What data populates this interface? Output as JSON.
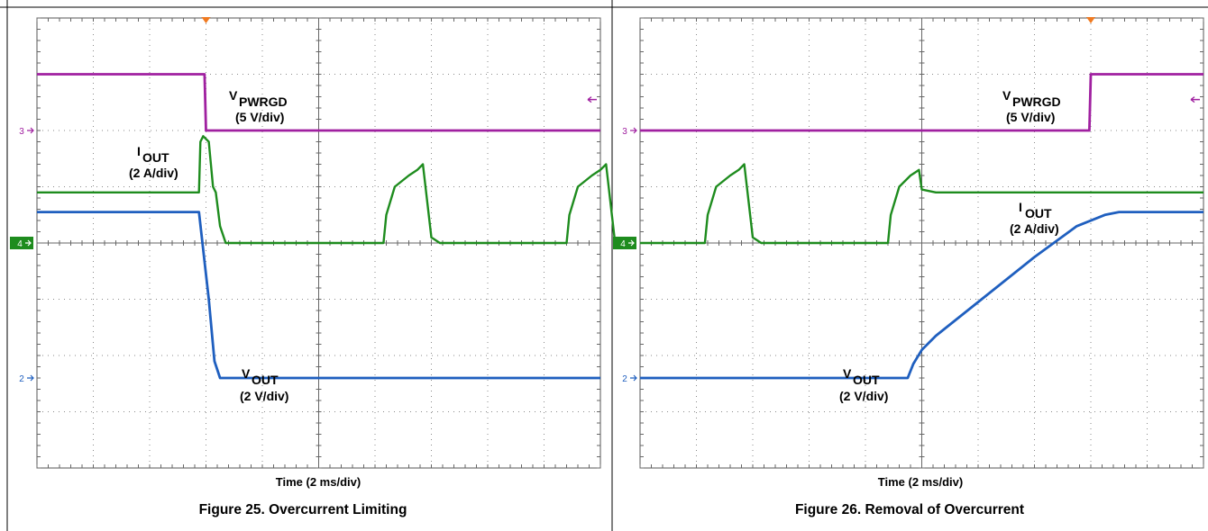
{
  "chart_data": [
    {
      "type": "line",
      "title": "Figure 25. Overcurrent Limiting",
      "xlabel": "Time (2 ms/div)",
      "x_unit": "ms",
      "xlim": [
        0,
        20
      ],
      "ylim": [
        0,
        8
      ],
      "grid": true,
      "channel_markers": [
        {
          "name": "3",
          "y": 6,
          "color": "#a020a0"
        },
        {
          "name": "4",
          "y": 4,
          "color": "#1e8c1e"
        },
        {
          "name": "2",
          "y": 1.6,
          "color": "#1f5fbf"
        }
      ],
      "series": [
        {
          "name": "V",
          "subscript": "PWRGD",
          "scale": "(5 V/div)",
          "color": "#a020a0",
          "x": [
            0,
            5.95,
            6.0,
            20
          ],
          "y": [
            7.0,
            7.0,
            6.0,
            6.0
          ]
        },
        {
          "name": "I",
          "subscript": "OUT",
          "scale": "(2 A/div)",
          "color": "#1e8c1e",
          "x": [
            0,
            5.75,
            5.8,
            5.9,
            6.1,
            6.25,
            6.35,
            6.5,
            6.7,
            7.0,
            12.3,
            12.4,
            12.7,
            13.2,
            13.5,
            13.7,
            14.0,
            14.3,
            18.8,
            18.9,
            19.2,
            19.7,
            20.0,
            20.2,
            20.5,
            20.8
          ],
          "y": [
            4.9,
            4.9,
            5.8,
            5.9,
            5.8,
            5.0,
            4.9,
            4.3,
            4.0,
            4.0,
            4.0,
            4.5,
            5.0,
            5.2,
            5.3,
            5.4,
            4.1,
            4.0,
            4.0,
            4.5,
            5.0,
            5.2,
            5.3,
            5.4,
            4.1,
            4.0
          ]
        },
        {
          "name": "V",
          "subscript": "OUT",
          "scale": "(2 V/div)",
          "color": "#1f5fbf",
          "x": [
            0,
            5.75,
            6.1,
            6.3,
            6.5,
            20
          ],
          "y": [
            4.55,
            4.55,
            3.0,
            1.9,
            1.6,
            1.6
          ]
        }
      ]
    },
    {
      "type": "line",
      "title": "Figure 26. Removal of Overcurrent",
      "xlabel": "Time (2 ms/div)",
      "x_unit": "ms",
      "xlim": [
        0,
        20
      ],
      "ylim": [
        0,
        8
      ],
      "grid": true,
      "channel_markers": [
        {
          "name": "3",
          "y": 6,
          "color": "#a020a0"
        },
        {
          "name": "4",
          "y": 4,
          "color": "#1e8c1e"
        },
        {
          "name": "2",
          "y": 1.6,
          "color": "#1f5fbf"
        }
      ],
      "series": [
        {
          "name": "V",
          "subscript": "PWRGD",
          "scale": "(5 V/div)",
          "color": "#a020a0",
          "x": [
            0,
            15.95,
            16.0,
            20
          ],
          "y": [
            6.0,
            6.0,
            7.0,
            7.0
          ]
        },
        {
          "name": "I",
          "subscript": "OUT",
          "scale": "(2 A/div)",
          "color": "#1e8c1e",
          "x": [
            0,
            2.3,
            2.4,
            2.7,
            3.2,
            3.5,
            3.7,
            4.0,
            4.3,
            8.8,
            8.9,
            9.2,
            9.6,
            9.9,
            10.0,
            10.5,
            11.0,
            20
          ],
          "y": [
            4.0,
            4.0,
            4.5,
            5.0,
            5.2,
            5.3,
            5.4,
            4.1,
            4.0,
            4.0,
            4.5,
            5.0,
            5.2,
            5.3,
            4.95,
            4.9,
            4.9,
            4.9
          ]
        },
        {
          "name": "V",
          "subscript": "OUT",
          "scale": "(2 V/div)",
          "color": "#1f5fbf",
          "x": [
            0,
            9.5,
            9.7,
            10.0,
            10.5,
            12.0,
            14.0,
            15.5,
            16.5,
            17.0,
            20
          ],
          "y": [
            1.6,
            1.6,
            1.85,
            2.1,
            2.35,
            2.95,
            3.75,
            4.3,
            4.5,
            4.55,
            4.55
          ]
        }
      ]
    }
  ]
}
